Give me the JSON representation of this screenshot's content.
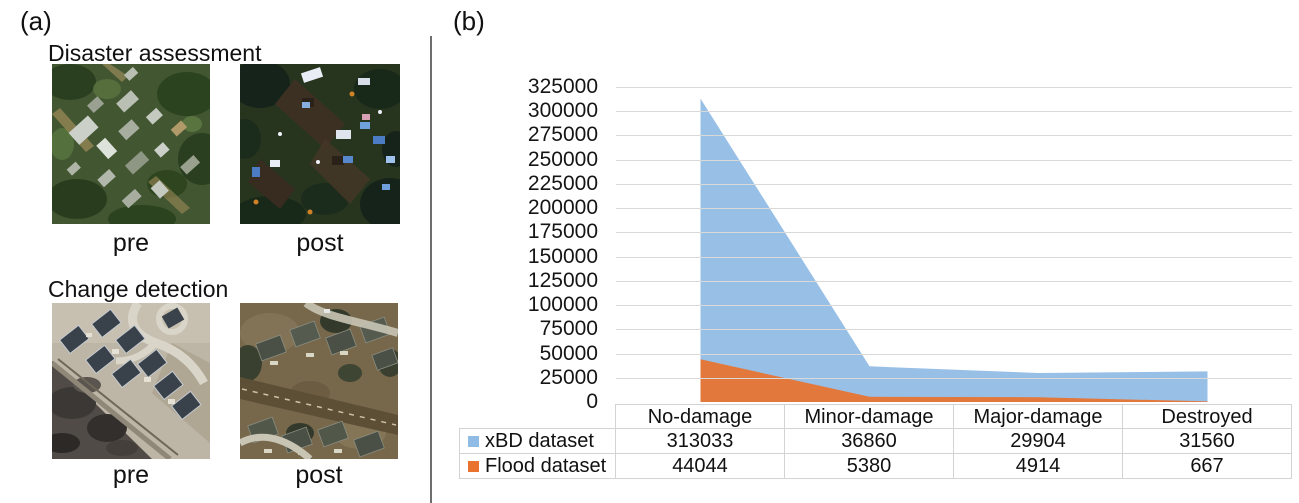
{
  "panel_a": {
    "label": "(a)",
    "sections": [
      {
        "title": "Disaster assessment",
        "pre_label": "pre",
        "post_label": "post"
      },
      {
        "title": "Change detection",
        "pre_label": "pre",
        "post_label": "post"
      }
    ]
  },
  "panel_b": {
    "label": "(b)"
  },
  "chart_data": {
    "type": "area",
    "categories": [
      "No-damage",
      "Minor-damage",
      "Major-damage",
      "Destroyed"
    ],
    "series": [
      {
        "name": "xBD dataset",
        "color": "#8FBBE5",
        "values": [
          313033,
          36860,
          29904,
          31560
        ]
      },
      {
        "name": "Flood dataset",
        "color": "#E9722E",
        "values": [
          44044,
          5380,
          4914,
          667
        ]
      }
    ],
    "ylim": [
      0,
      325000
    ],
    "y_tick_step": 25000,
    "grid": true,
    "gridline_color": "#D9D9D9",
    "legend_position": "table-left",
    "title": "",
    "xlabel": "",
    "ylabel": ""
  }
}
